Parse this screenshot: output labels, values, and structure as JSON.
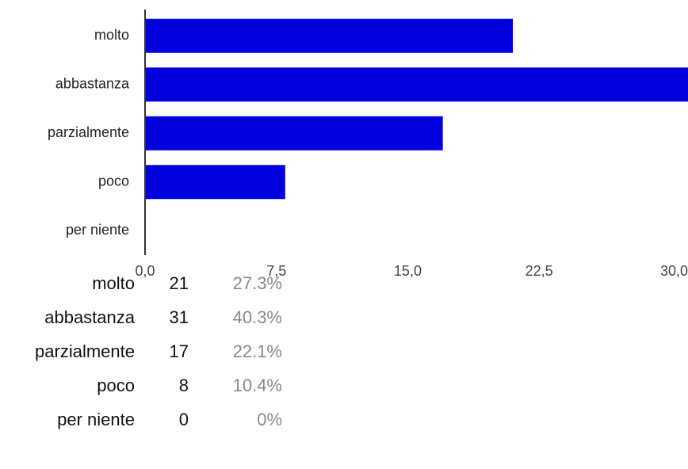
{
  "chart_data": {
    "type": "bar",
    "orientation": "horizontal",
    "categories": [
      "molto",
      "abbastanza",
      "parzialmente",
      "poco",
      "per niente"
    ],
    "values": [
      21,
      31,
      17,
      8,
      0
    ],
    "xlim": [
      0,
      31
    ],
    "xticks": [
      "0,0",
      "7,5",
      "15,0",
      "22,5",
      "30,0"
    ],
    "xtick_values": [
      0,
      7.5,
      15,
      22.5,
      30
    ],
    "bar_color": "#0000dd",
    "grid": false,
    "legend": "none"
  },
  "summary": {
    "rows": [
      {
        "label": "molto",
        "count": "21",
        "percent": "27.3%"
      },
      {
        "label": "abbastanza",
        "count": "31",
        "percent": "40.3%"
      },
      {
        "label": "parzialmente",
        "count": "17",
        "percent": "22.1%"
      },
      {
        "label": "poco",
        "count": "8",
        "percent": "10.4%"
      },
      {
        "label": "per niente",
        "count": "0",
        "percent": "0%"
      }
    ]
  }
}
